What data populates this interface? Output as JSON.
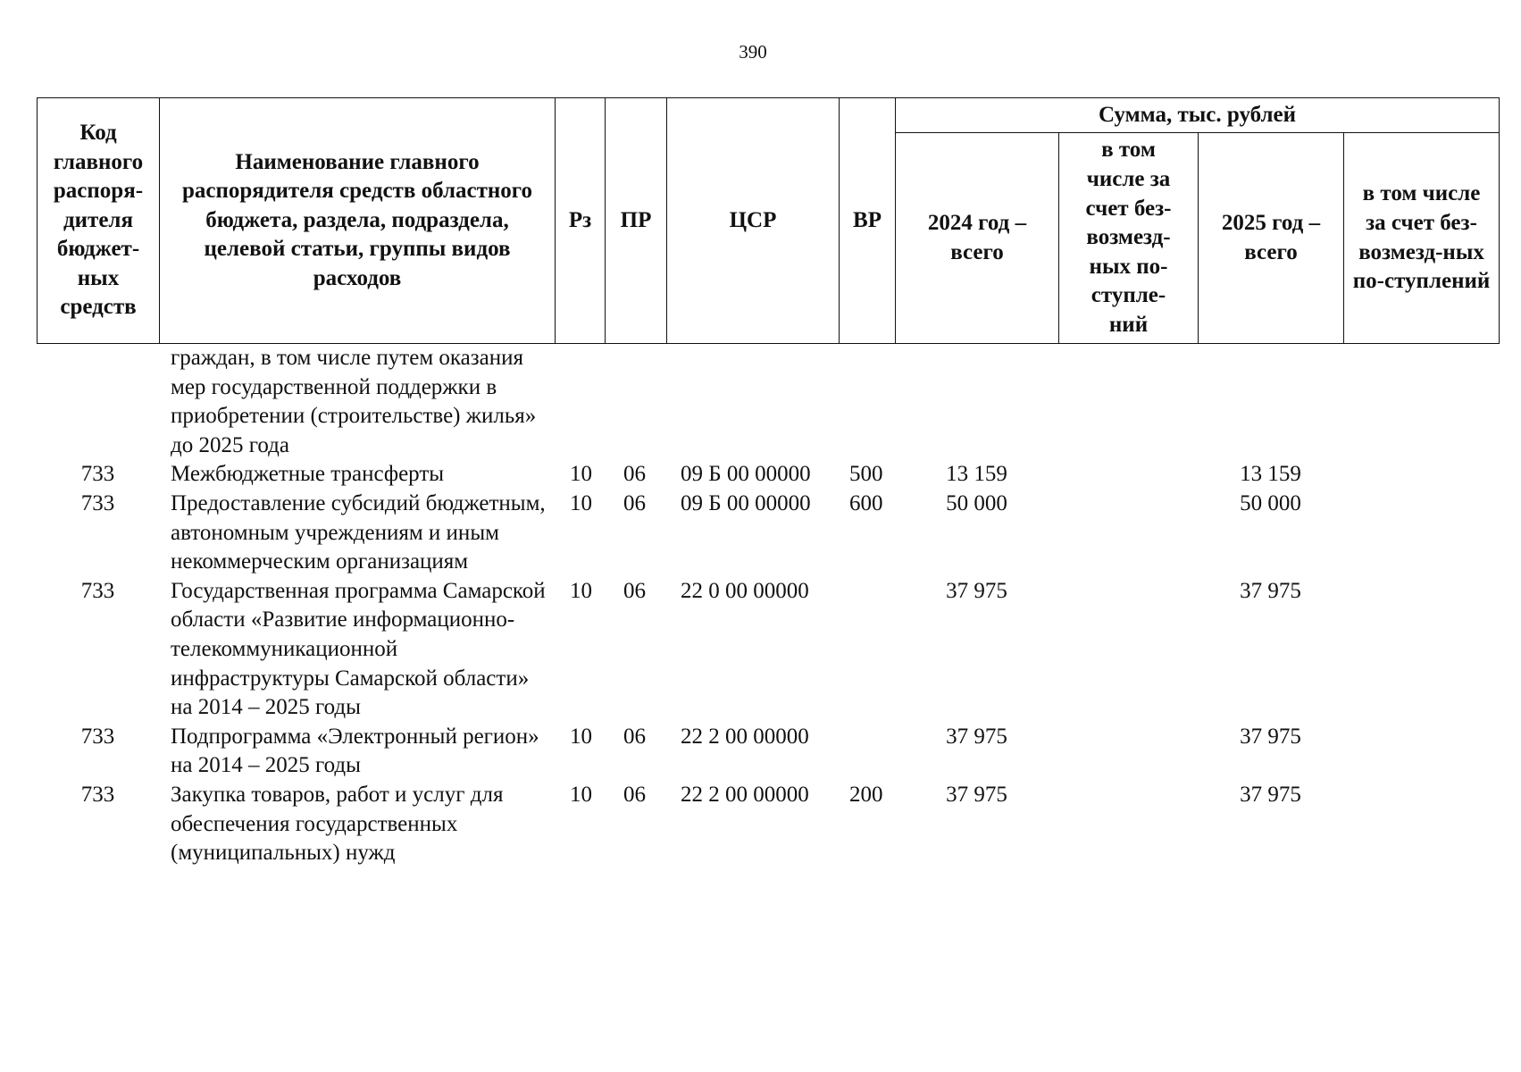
{
  "page_number": "390",
  "header": {
    "code": "Код главного распоря-дителя бюджет-ных средств",
    "name": "Наименование главного распорядителя средств областного бюджета, раздела, подраздела, целевой статьи, группы видов расходов",
    "rz": "Рз",
    "pr": "ПР",
    "csr": "ЦСР",
    "vr": "ВР",
    "sum": "Сумма, тыс. рублей",
    "y2024_total": "2024 год – всего",
    "y2024_free": "в том числе за счет без-возмезд-ных по-ступле-ний",
    "y2025_total": "2025 год – всего",
    "y2025_free": "в том числе за счет без-возмезд-ных по-ступлений"
  },
  "rows": [
    {
      "code": "",
      "name": "граждан, в том числе путем оказания мер государственной поддержки в приобретении (строительстве) жилья» до 2025 года",
      "rz": "",
      "pr": "",
      "csr": "",
      "vr": "",
      "y2024": "",
      "y2024_free": "",
      "y2025": "",
      "y2025_free": ""
    },
    {
      "code": "733",
      "name": "Межбюджетные трансферты",
      "rz": "10",
      "pr": "06",
      "csr": "09 Б 00 00000",
      "vr": "500",
      "y2024": "13 159",
      "y2024_free": "",
      "y2025": "13 159",
      "y2025_free": ""
    },
    {
      "code": "733",
      "name": "Предоставление субсидий бюджетным, автономным учреждениям и иным некоммерческим организациям",
      "rz": "10",
      "pr": "06",
      "csr": "09 Б 00 00000",
      "vr": "600",
      "y2024": "50 000",
      "y2024_free": "",
      "y2025": "50 000",
      "y2025_free": ""
    },
    {
      "code": "733",
      "name": "Государственная программа Самарской области «Развитие информационно-телекоммуникационной инфраструктуры Самарской области» на 2014 – 2025 годы",
      "rz": "10",
      "pr": "06",
      "csr": "22 0 00 00000",
      "vr": "",
      "y2024": "37 975",
      "y2024_free": "",
      "y2025": "37 975",
      "y2025_free": ""
    },
    {
      "code": "733",
      "name": "Подпрограмма «Электронный регион» на 2014 – 2025 годы",
      "rz": "10",
      "pr": "06",
      "csr": "22 2 00 00000",
      "vr": "",
      "y2024": "37 975",
      "y2024_free": "",
      "y2025": "37 975",
      "y2025_free": ""
    },
    {
      "code": "733",
      "name": "Закупка товаров, работ и услуг для обеспечения государственных (муниципальных) нужд",
      "rz": "10",
      "pr": "06",
      "csr": "22 2 00 00000",
      "vr": "200",
      "y2024": "37 975",
      "y2024_free": "",
      "y2025": "37 975",
      "y2025_free": ""
    }
  ]
}
